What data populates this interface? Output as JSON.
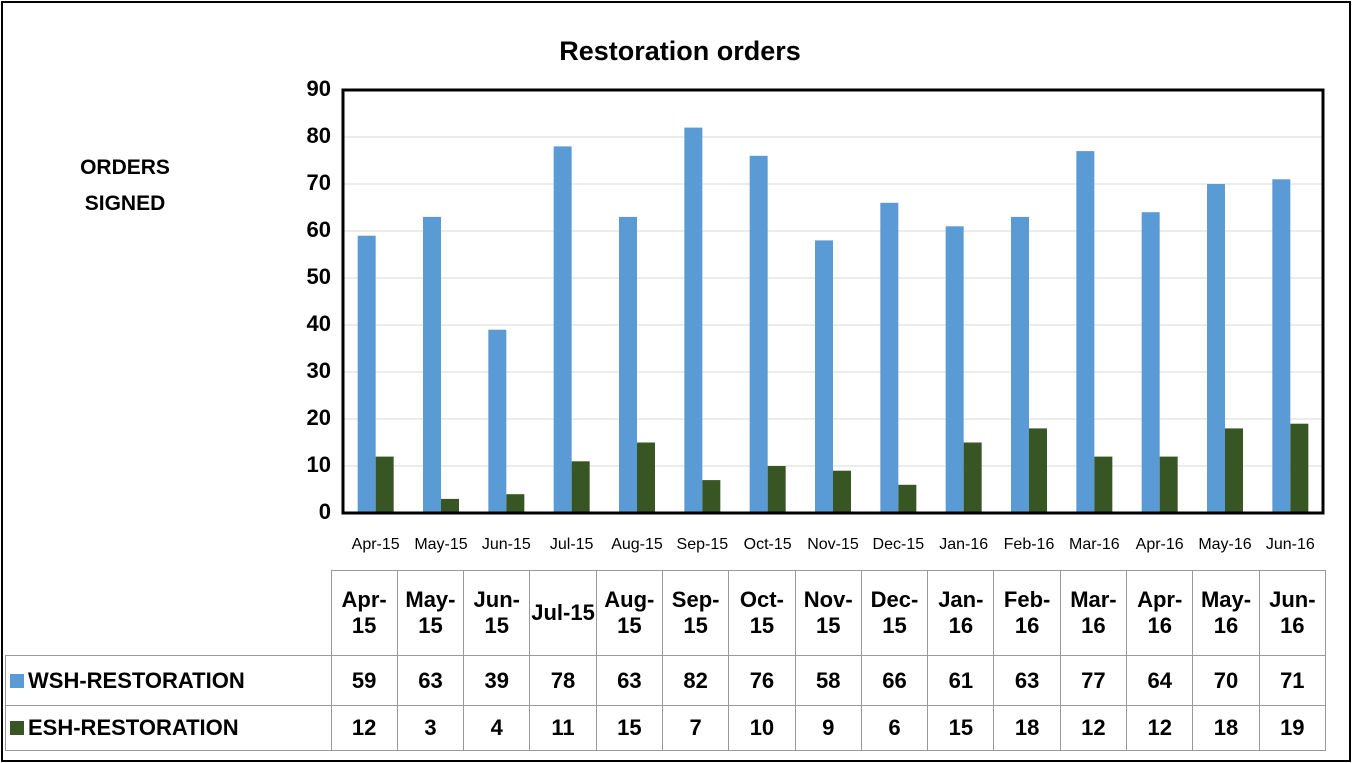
{
  "chart_data": {
    "type": "bar",
    "title": "Restoration orders",
    "y_axis_label": "ORDERS SIGNED",
    "categories": [
      "Apr-15",
      "May-15",
      "Jun-15",
      "Jul-15",
      "Aug-15",
      "Sep-15",
      "Oct-15",
      "Nov-15",
      "Dec-15",
      "Jan-16",
      "Feb-16",
      "Mar-16",
      "Apr-16",
      "May-16",
      "Jun-16"
    ],
    "series": [
      {
        "name": "WSH-RESTORATION",
        "color": "#5b9bd5",
        "values": [
          59,
          63,
          39,
          78,
          63,
          82,
          76,
          58,
          66,
          61,
          63,
          77,
          64,
          70,
          71
        ]
      },
      {
        "name": "ESH-RESTORATION",
        "color": "#375623",
        "values": [
          12,
          3,
          4,
          11,
          15,
          7,
          10,
          9,
          6,
          15,
          18,
          12,
          12,
          18,
          19
        ]
      }
    ],
    "ylim": [
      0,
      90
    ],
    "yticks": [
      0,
      10,
      20,
      30,
      40,
      50,
      60,
      70,
      80,
      90
    ],
    "grid": true,
    "data_table": true
  }
}
